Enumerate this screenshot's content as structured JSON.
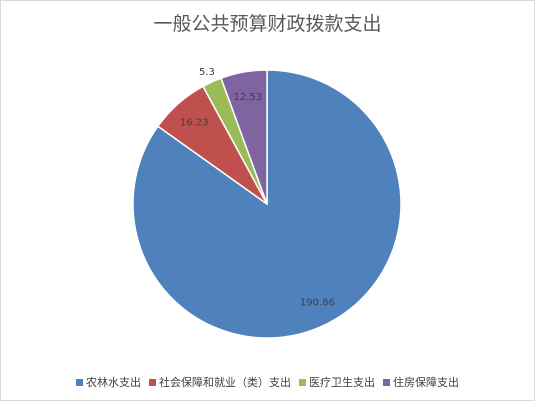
{
  "chart_data": {
    "type": "pie",
    "title": "一般公共预算财政拨款支出",
    "categories": [
      "农林水支出",
      "社会保障和就业（类）支出",
      "医疗卫生支出",
      "住房保障支出"
    ],
    "values": [
      190.86,
      16.23,
      5.3,
      12.53
    ],
    "labels": [
      "190.86",
      "16.23",
      "5.3",
      "12.53"
    ],
    "colors": [
      "#4f81bd",
      "#c0504d",
      "#9bbb59",
      "#8064a2"
    ],
    "legend_position": "bottom"
  }
}
